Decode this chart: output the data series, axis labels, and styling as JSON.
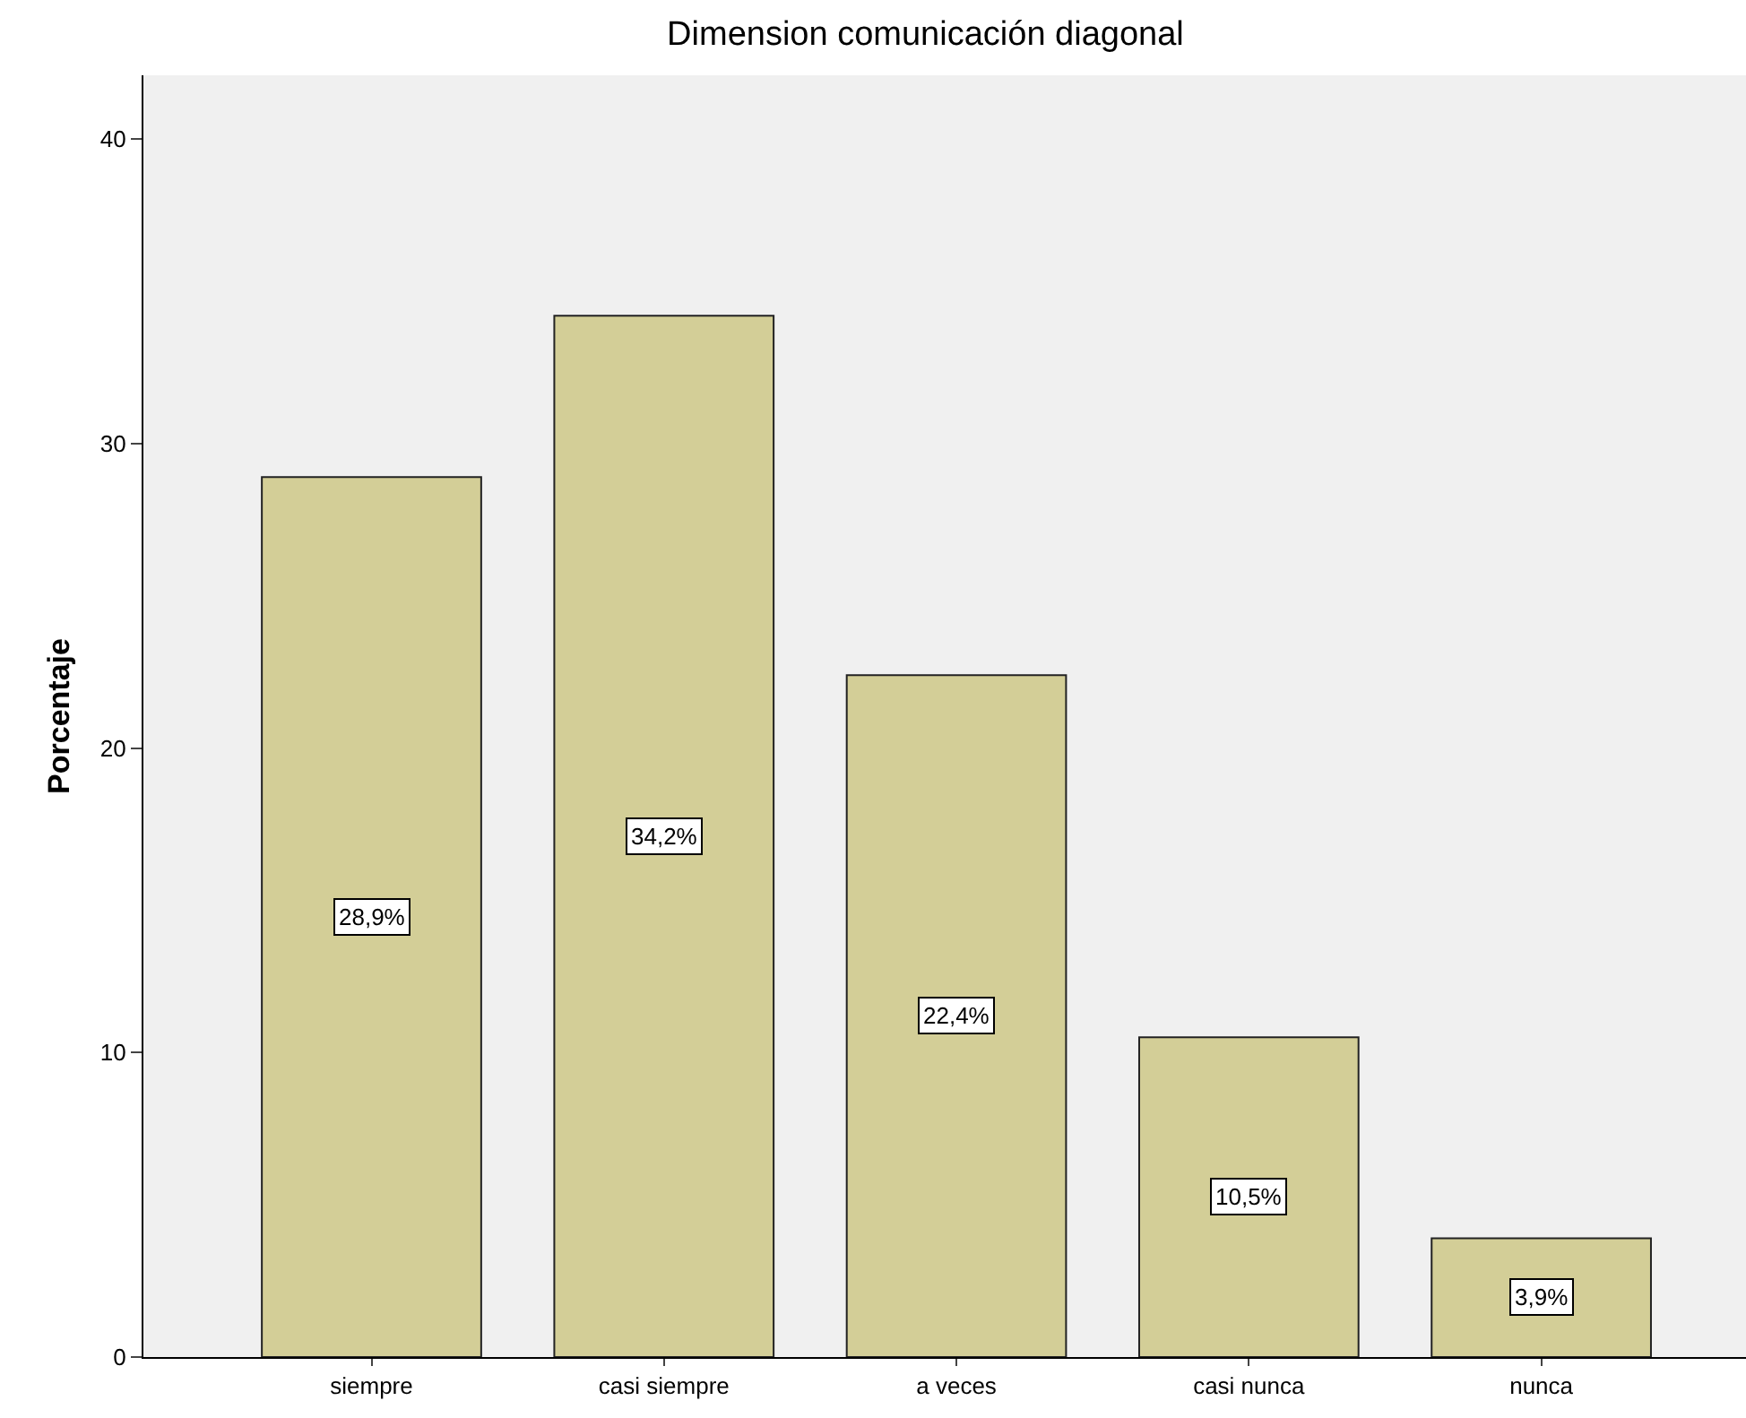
{
  "chart_data": {
    "type": "bar",
    "title": "Dimension comunicación diagonal",
    "ylabel": "Porcentaje",
    "categories": [
      "siempre",
      "casi siempre",
      "a veces",
      "casi nunca",
      "nunca"
    ],
    "values": [
      28.9,
      34.2,
      22.4,
      10.5,
      3.9
    ],
    "value_labels": [
      "28,9%",
      "34,2%",
      "22,4%",
      "10,5%",
      "3,9%"
    ],
    "color": "#d3ce97",
    "ylim": [
      0,
      42.1
    ],
    "yticks": [
      0,
      10,
      20,
      30,
      40
    ],
    "grid": false,
    "legend": false
  }
}
